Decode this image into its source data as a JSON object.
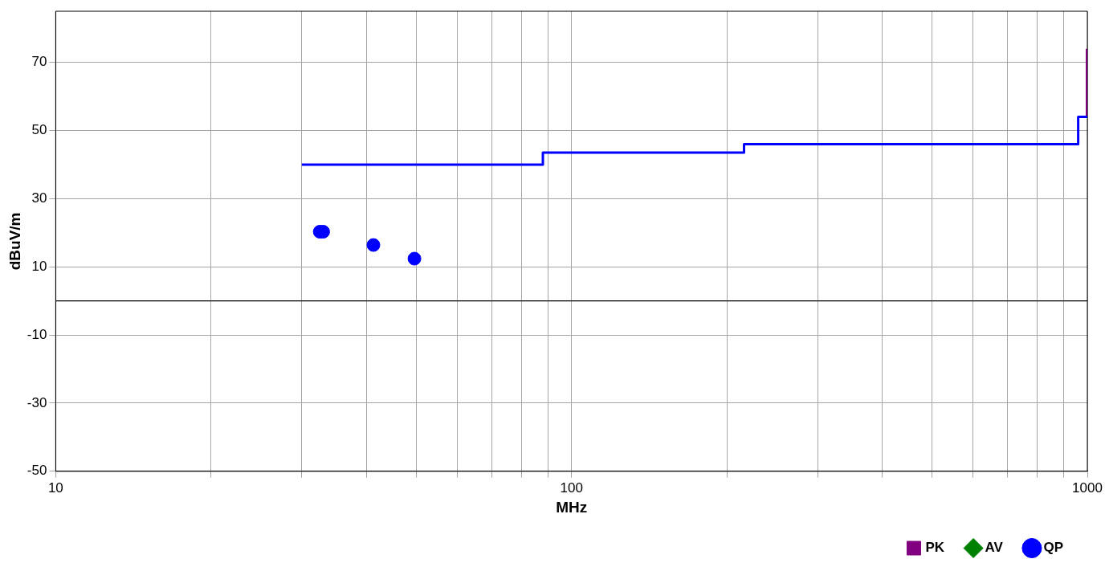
{
  "chart_data": {
    "type": "scatter",
    "xlabel": "MHz",
    "ylabel": "dBuV/m",
    "log": "x",
    "xlim": [
      10,
      1000
    ],
    "xticks": [
      10,
      {
        "value": 20,
        "label": null
      },
      {
        "value": 30,
        "label": null
      },
      {
        "value": 40,
        "label": null
      },
      {
        "value": 50,
        "label": null
      },
      {
        "value": 60,
        "label": null
      },
      {
        "value": 70,
        "label": null
      },
      {
        "value": 80,
        "label": null
      },
      {
        "value": 90,
        "label": null
      },
      100,
      {
        "value": 200,
        "label": null
      },
      {
        "value": 300,
        "label": null
      },
      {
        "value": 400,
        "label": null
      },
      {
        "value": 500,
        "label": null
      },
      {
        "value": 600,
        "label": null
      },
      {
        "value": 700,
        "label": null
      },
      {
        "value": 800,
        "label": null
      },
      {
        "value": 900,
        "label": null
      },
      1000
    ],
    "ylim": [
      -50,
      85
    ],
    "yticks": [
      -50,
      -30,
      -10,
      10,
      30,
      50,
      70
    ],
    "grid": true,
    "legend": "bottom right",
    "ref_lines": [
      {
        "axis": "y",
        "value": 0,
        "color": "#000000"
      }
    ],
    "series": [
      {
        "type": "step",
        "color": "#0000ff",
        "marker": "none",
        "x": [
          30,
          88,
          216,
          960,
          1000
        ],
        "values": [
          40,
          43.5,
          46,
          54,
          54
        ]
      },
      {
        "type": "line",
        "name": "PK",
        "color": "#800080",
        "x": [
          1000,
          1000
        ],
        "values": [
          54,
          74
        ]
      },
      {
        "type": "scatter",
        "name": "AV",
        "color": "#008000",
        "marker": "diamond"
      },
      {
        "name": "QP",
        "color": "#0000ff",
        "marker": "circle",
        "x": [
          32.5,
          33,
          41.3,
          49.6
        ],
        "values": [
          20.3,
          20.3,
          16.4,
          12.4
        ]
      }
    ]
  }
}
